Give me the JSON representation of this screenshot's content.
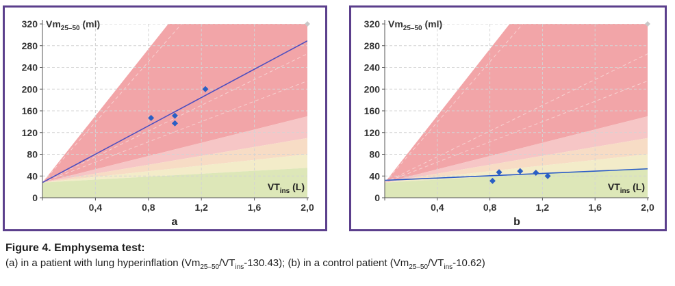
{
  "colors": {
    "frame": "#5b3f8c",
    "zone_red": "#f2a5a8",
    "zone_pink": "#f6c6c6",
    "zone_peach": "#f7dcc5",
    "zone_cream": "#f3ecc9",
    "zone_green": "#dde7b8",
    "regression_a": "#4e4fbf",
    "regression_b": "#2a5bc7",
    "points": "#2a5fc4"
  },
  "chart_data": [
    {
      "type": "scatter",
      "panel_label": "a",
      "ylabel_main": "Vm",
      "ylabel_sub": "25–50",
      "ylabel_unit": " (ml)",
      "xlabel_main": "VT",
      "xlabel_sub": "ins",
      "xlabel_unit": " (L)",
      "xlim": [
        0,
        2.0
      ],
      "ylim": [
        0,
        320
      ],
      "xticks": [
        "0,4",
        "0,8",
        "1,2",
        "1,6",
        "2,0"
      ],
      "xtick_values": [
        0.4,
        0.8,
        1.2,
        1.6,
        2.0
      ],
      "yticks": [
        "0",
        "40",
        "80",
        "120",
        "160",
        "200",
        "240",
        "280",
        "320"
      ],
      "ytick_values": [
        0,
        40,
        80,
        120,
        160,
        200,
        240,
        280,
        320
      ],
      "grid": true,
      "points": [
        {
          "x": 0.82,
          "y": 147
        },
        {
          "x": 1.0,
          "y": 151
        },
        {
          "x": 1.0,
          "y": 137
        },
        {
          "x": 1.23,
          "y": 200
        }
      ],
      "regression": {
        "intercept": 28,
        "slope": 130.43
      }
    },
    {
      "type": "scatter",
      "panel_label": "b",
      "ylabel_main": "Vm",
      "ylabel_sub": "25–50",
      "ylabel_unit": " (ml)",
      "xlabel_main": "VT",
      "xlabel_sub": "ins",
      "xlabel_unit": " (L)",
      "xlim": [
        0,
        2.0
      ],
      "ylim": [
        0,
        320
      ],
      "xticks": [
        "0,4",
        "0,8",
        "1,2",
        "1,6",
        "2,0"
      ],
      "xtick_values": [
        0.4,
        0.8,
        1.2,
        1.6,
        2.0
      ],
      "yticks": [
        "0",
        "40",
        "80",
        "120",
        "160",
        "200",
        "240",
        "280",
        "320"
      ],
      "ytick_values": [
        0,
        40,
        80,
        120,
        160,
        200,
        240,
        280,
        320
      ],
      "grid": true,
      "points": [
        {
          "x": 0.82,
          "y": 31
        },
        {
          "x": 0.87,
          "y": 47
        },
        {
          "x": 1.03,
          "y": 49
        },
        {
          "x": 1.15,
          "y": 46
        },
        {
          "x": 1.24,
          "y": 40
        }
      ],
      "regression": {
        "intercept": 32,
        "slope": 10.62
      }
    }
  ],
  "caption": {
    "title": "Figure 4. Emphysema test:",
    "p1": "(a) in a patient with lung hyperinflation (Vm",
    "s1": "25–50",
    "p2": "/VT",
    "s2": "ins",
    "p3": "-130.43); (b) in a control patient (Vm",
    "s3": "25–50",
    "p4": "/VT",
    "s4": "ins",
    "p5": "-10.62)"
  }
}
